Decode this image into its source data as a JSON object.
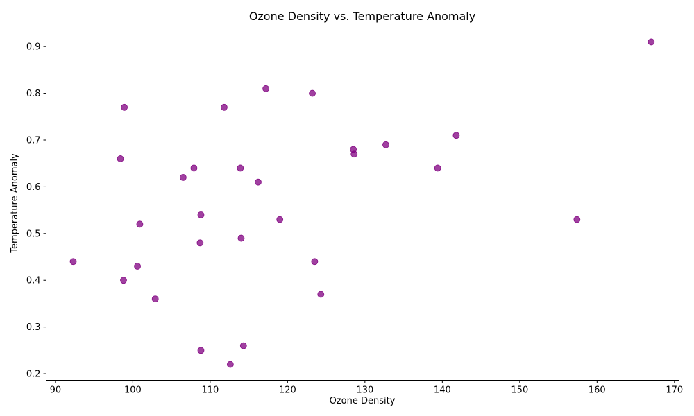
{
  "chart_data": {
    "type": "scatter",
    "title": "Ozone Density vs. Temperature Anomaly",
    "xlabel": "Ozone Density",
    "ylabel": "Temperature Anomaly",
    "xlim": [
      88.8,
      170.6
    ],
    "ylim": [
      0.186,
      0.944
    ],
    "xticks": [
      90,
      100,
      110,
      120,
      130,
      140,
      150,
      160,
      170
    ],
    "yticks": [
      0.2,
      0.3,
      0.4,
      0.5,
      0.6,
      0.7,
      0.8,
      0.9
    ],
    "grid": false,
    "marker_color": "#800080",
    "marker_alpha": 0.75,
    "points": [
      {
        "x": 92.3,
        "y": 0.44
      },
      {
        "x": 98.4,
        "y": 0.66
      },
      {
        "x": 98.8,
        "y": 0.4
      },
      {
        "x": 98.9,
        "y": 0.77
      },
      {
        "x": 100.6,
        "y": 0.43
      },
      {
        "x": 100.9,
        "y": 0.52
      },
      {
        "x": 102.9,
        "y": 0.36
      },
      {
        "x": 106.5,
        "y": 0.62
      },
      {
        "x": 107.9,
        "y": 0.64
      },
      {
        "x": 108.7,
        "y": 0.48
      },
      {
        "x": 108.8,
        "y": 0.54
      },
      {
        "x": 108.8,
        "y": 0.25
      },
      {
        "x": 111.8,
        "y": 0.77
      },
      {
        "x": 112.6,
        "y": 0.22
      },
      {
        "x": 113.9,
        "y": 0.64
      },
      {
        "x": 114.0,
        "y": 0.49
      },
      {
        "x": 114.3,
        "y": 0.26
      },
      {
        "x": 116.2,
        "y": 0.61
      },
      {
        "x": 117.2,
        "y": 0.81
      },
      {
        "x": 119.0,
        "y": 0.53
      },
      {
        "x": 123.2,
        "y": 0.8
      },
      {
        "x": 123.5,
        "y": 0.44
      },
      {
        "x": 124.3,
        "y": 0.37
      },
      {
        "x": 128.5,
        "y": 0.68
      },
      {
        "x": 128.6,
        "y": 0.67
      },
      {
        "x": 132.7,
        "y": 0.69
      },
      {
        "x": 139.4,
        "y": 0.64
      },
      {
        "x": 141.8,
        "y": 0.71
      },
      {
        "x": 157.4,
        "y": 0.53
      },
      {
        "x": 167.0,
        "y": 0.91
      }
    ]
  }
}
